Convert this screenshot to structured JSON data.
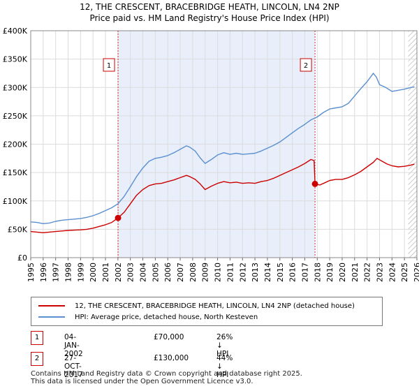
{
  "title_line1": "12, THE CRESCENT, BRACEBRIDGE HEATH, LINCOLN, LN4 2NP",
  "title_line2": "Price paid vs. HM Land Registry's House Price Index (HPI)",
  "chart_data": {
    "type": "line",
    "ylim": [
      0,
      400000
    ],
    "xlim": [
      1995,
      2026
    ],
    "y_ticks": [
      {
        "value": 0,
        "label": "£0"
      },
      {
        "value": 50000,
        "label": "£50K"
      },
      {
        "value": 100000,
        "label": "£100K"
      },
      {
        "value": 150000,
        "label": "£150K"
      },
      {
        "value": 200000,
        "label": "£200K"
      },
      {
        "value": 250000,
        "label": "£250K"
      },
      {
        "value": 300000,
        "label": "£300K"
      },
      {
        "value": 350000,
        "label": "£350K"
      },
      {
        "value": 400000,
        "label": "£400K"
      }
    ],
    "x_ticks": [
      "1995",
      "1996",
      "1997",
      "1998",
      "1999",
      "2000",
      "2001",
      "2002",
      "2003",
      "2004",
      "2005",
      "2006",
      "2007",
      "2008",
      "2009",
      "2010",
      "2011",
      "2012",
      "2013",
      "2014",
      "2015",
      "2016",
      "2017",
      "2018",
      "2019",
      "2020",
      "2021",
      "2022",
      "2023",
      "2024",
      "2025",
      "2026"
    ],
    "shaded_region": [
      2002.01,
      2017.82
    ],
    "hatched_from": 2025.3,
    "colors": {
      "property": "#cc0000",
      "hpi": "#5b8fd0",
      "shade": "#e8eefa",
      "grid": "#dcdcdc"
    },
    "series": [
      {
        "name": "12, THE CRESCENT, BRACEBRIDGE HEATH, LINCOLN, LN4 2NP (detached house)",
        "color": "#cc0000",
        "points": [
          [
            1995.0,
            46000
          ],
          [
            1995.5,
            45000
          ],
          [
            1996.0,
            44000
          ],
          [
            1996.5,
            45000
          ],
          [
            1997.0,
            46000
          ],
          [
            1997.5,
            47000
          ],
          [
            1998.0,
            48000
          ],
          [
            1998.5,
            48500
          ],
          [
            1999.0,
            49000
          ],
          [
            1999.5,
            50000
          ],
          [
            2000.0,
            52000
          ],
          [
            2000.5,
            55000
          ],
          [
            2001.0,
            58000
          ],
          [
            2001.5,
            62000
          ],
          [
            2002.01,
            70000
          ],
          [
            2002.5,
            80000
          ],
          [
            2003.0,
            95000
          ],
          [
            2003.5,
            110000
          ],
          [
            2004.0,
            120000
          ],
          [
            2004.5,
            127000
          ],
          [
            2005.0,
            130000
          ],
          [
            2005.5,
            131000
          ],
          [
            2006.0,
            134000
          ],
          [
            2006.5,
            137000
          ],
          [
            2007.0,
            141000
          ],
          [
            2007.5,
            145000
          ],
          [
            2007.75,
            143000
          ],
          [
            2008.2,
            138000
          ],
          [
            2008.6,
            130000
          ],
          [
            2009.0,
            120000
          ],
          [
            2009.5,
            126000
          ],
          [
            2010.0,
            131000
          ],
          [
            2010.5,
            134000
          ],
          [
            2011.0,
            132000
          ],
          [
            2011.5,
            133000
          ],
          [
            2012.0,
            131000
          ],
          [
            2012.5,
            132000
          ],
          [
            2013.0,
            131000
          ],
          [
            2013.5,
            134000
          ],
          [
            2014.0,
            136000
          ],
          [
            2014.5,
            140000
          ],
          [
            2015.0,
            145000
          ],
          [
            2015.5,
            150000
          ],
          [
            2016.0,
            155000
          ],
          [
            2016.5,
            160000
          ],
          [
            2017.0,
            166000
          ],
          [
            2017.5,
            173000
          ],
          [
            2017.75,
            171000
          ],
          [
            2017.82,
            130000
          ],
          [
            2018.2,
            128000
          ],
          [
            2018.6,
            132000
          ],
          [
            2019.0,
            136000
          ],
          [
            2019.5,
            138000
          ],
          [
            2020.0,
            138000
          ],
          [
            2020.5,
            141000
          ],
          [
            2021.0,
            146000
          ],
          [
            2021.5,
            152000
          ],
          [
            2022.0,
            160000
          ],
          [
            2022.5,
            168000
          ],
          [
            2022.8,
            175000
          ],
          [
            2023.2,
            170000
          ],
          [
            2023.6,
            165000
          ],
          [
            2024.0,
            162000
          ],
          [
            2024.5,
            160000
          ],
          [
            2025.0,
            161000
          ],
          [
            2025.5,
            163000
          ],
          [
            2025.8,
            165000
          ]
        ]
      },
      {
        "name": "HPI: Average price, detached house, North Kesteven",
        "color": "#5b8fd0",
        "points": [
          [
            1995.0,
            63000
          ],
          [
            1995.5,
            62000
          ],
          [
            1996.0,
            60000
          ],
          [
            1996.5,
            61000
          ],
          [
            1997.0,
            64000
          ],
          [
            1997.5,
            66000
          ],
          [
            1998.0,
            67000
          ],
          [
            1998.5,
            68000
          ],
          [
            1999.0,
            69000
          ],
          [
            1999.5,
            71000
          ],
          [
            2000.0,
            74000
          ],
          [
            2000.5,
            78000
          ],
          [
            2001.0,
            83000
          ],
          [
            2001.5,
            88000
          ],
          [
            2002.0,
            95000
          ],
          [
            2002.5,
            108000
          ],
          [
            2003.0,
            125000
          ],
          [
            2003.5,
            143000
          ],
          [
            2004.0,
            158000
          ],
          [
            2004.5,
            170000
          ],
          [
            2005.0,
            175000
          ],
          [
            2005.5,
            177000
          ],
          [
            2006.0,
            180000
          ],
          [
            2006.5,
            185000
          ],
          [
            2007.0,
            191000
          ],
          [
            2007.5,
            197000
          ],
          [
            2007.75,
            195000
          ],
          [
            2008.2,
            188000
          ],
          [
            2008.6,
            176000
          ],
          [
            2009.0,
            166000
          ],
          [
            2009.5,
            173000
          ],
          [
            2010.0,
            181000
          ],
          [
            2010.5,
            185000
          ],
          [
            2011.0,
            182000
          ],
          [
            2011.5,
            184000
          ],
          [
            2012.0,
            182000
          ],
          [
            2012.5,
            183000
          ],
          [
            2013.0,
            184000
          ],
          [
            2013.5,
            188000
          ],
          [
            2014.0,
            193000
          ],
          [
            2014.5,
            198000
          ],
          [
            2015.0,
            204000
          ],
          [
            2015.5,
            212000
          ],
          [
            2016.0,
            220000
          ],
          [
            2016.5,
            228000
          ],
          [
            2017.0,
            235000
          ],
          [
            2017.5,
            243000
          ],
          [
            2018.0,
            248000
          ],
          [
            2018.5,
            256000
          ],
          [
            2019.0,
            262000
          ],
          [
            2019.5,
            264000
          ],
          [
            2020.0,
            266000
          ],
          [
            2020.5,
            272000
          ],
          [
            2021.0,
            285000
          ],
          [
            2021.5,
            298000
          ],
          [
            2022.0,
            310000
          ],
          [
            2022.5,
            325000
          ],
          [
            2022.75,
            318000
          ],
          [
            2023.0,
            305000
          ],
          [
            2023.5,
            300000
          ],
          [
            2024.0,
            293000
          ],
          [
            2024.5,
            295000
          ],
          [
            2025.0,
            297000
          ],
          [
            2025.5,
            300000
          ],
          [
            2025.8,
            301000
          ]
        ]
      }
    ],
    "markers": [
      {
        "label": "1",
        "x": 2002.01,
        "y": 70000
      },
      {
        "label": "2",
        "x": 2017.82,
        "y": 130000
      }
    ]
  },
  "legend": {
    "property_label": "12, THE CRESCENT, BRACEBRIDGE HEATH, LINCOLN, LN4 2NP (detached house)",
    "hpi_label": "HPI: Average price, detached house, North Kesteven"
  },
  "transactions": [
    {
      "num": "1",
      "date": "04-JAN-2002",
      "price": "£70,000",
      "hpi": "26% ↓ HPI"
    },
    {
      "num": "2",
      "date": "27-OCT-2017",
      "price": "£130,000",
      "hpi": "44% ↓ HPI"
    }
  ],
  "footer": {
    "line1": "Contains HM Land Registry data © Crown copyright and database right 2025.",
    "line2": "This data is licensed under the Open Government Licence v3.0."
  }
}
